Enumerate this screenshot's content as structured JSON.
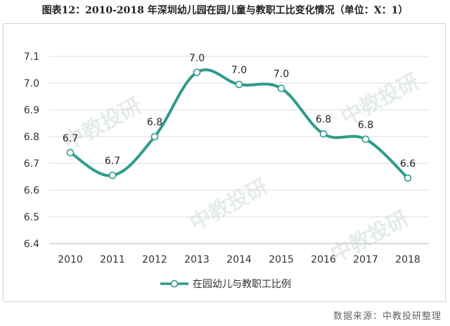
{
  "title": "图表12：2010-2018 年深圳幼儿园在园儿童与教职工比变化情况（单位：X：1）",
  "source": "数据来源：中教投研整理",
  "watermark": "中教投研",
  "colors": {
    "line": "#2e9c8c",
    "marker_fill": "#ffffff",
    "grid": "#dcdcdc"
  },
  "chart_data": {
    "type": "line",
    "x": [
      "2010",
      "2011",
      "2012",
      "2013",
      "2014",
      "2015",
      "2016",
      "2017",
      "2018"
    ],
    "series": [
      {
        "name": "在园幼儿与教职工比例",
        "values": [
          6.74,
          6.655,
          6.8,
          7.04,
          6.995,
          6.98,
          6.81,
          6.79,
          6.645
        ],
        "data_labels": [
          "6.7",
          "6.7",
          "6.8",
          "7.0",
          "7.0",
          "7.0",
          "6.8",
          "6.8",
          "6.6"
        ]
      }
    ],
    "y_ticks": [
      "6.4",
      "6.5",
      "6.6",
      "6.7",
      "6.8",
      "6.9",
      "7.0",
      "7.1"
    ],
    "ylim": [
      6.4,
      7.1
    ],
    "grid": true,
    "smooth": true,
    "legend_position": "bottom-center"
  }
}
